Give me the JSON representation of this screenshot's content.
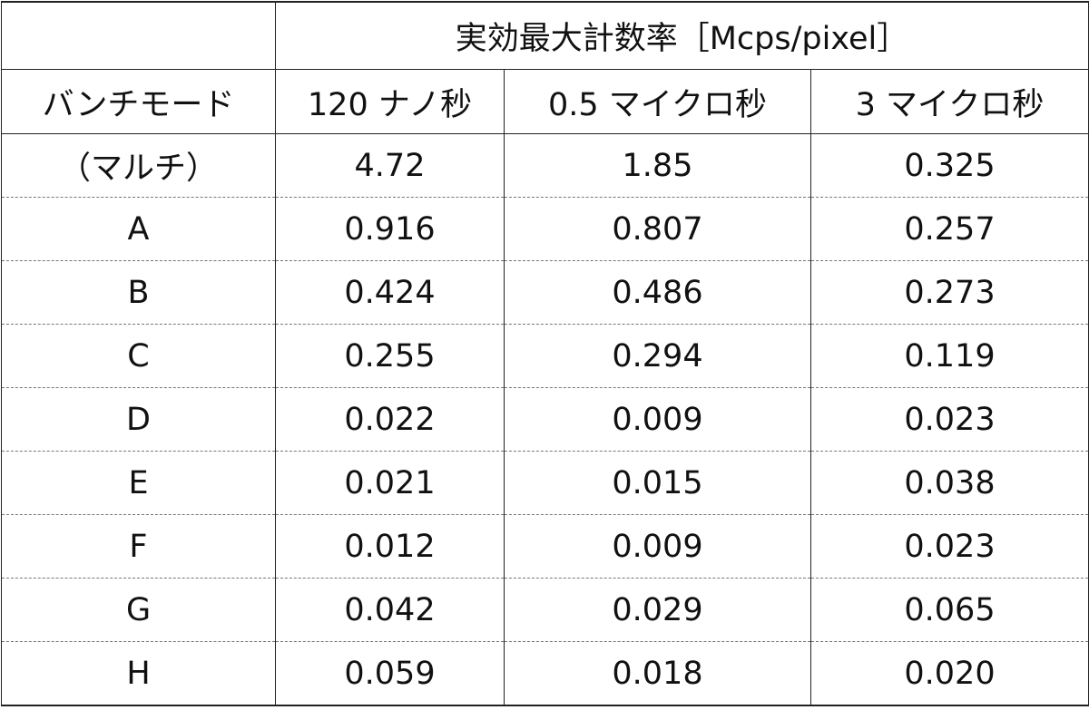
{
  "table": {
    "header": {
      "group_title": "実効最大計数率［Mcps/pixel］",
      "row_label": "バンチモード",
      "columns": [
        "120 ナノ秒",
        "0.5 マイクロ秒",
        "3 マイクロ秒"
      ]
    },
    "rows": [
      [
        "（マルチ）",
        "4.72",
        "1.85",
        "0.325"
      ],
      [
        "A",
        "0.916",
        "0.807",
        "0.257"
      ],
      [
        "B",
        "0.424",
        "0.486",
        "0.273"
      ],
      [
        "C",
        "0.255",
        "0.294",
        "0.119"
      ],
      [
        "D",
        "0.022",
        "0.009",
        "0.023"
      ],
      [
        "E",
        "0.021",
        "0.015",
        "0.038"
      ],
      [
        "F",
        "0.012",
        "0.009",
        "0.023"
      ],
      [
        "G",
        "0.042",
        "0.029",
        "0.065"
      ],
      [
        "H",
        "0.059",
        "0.018",
        "0.020"
      ]
    ]
  }
}
